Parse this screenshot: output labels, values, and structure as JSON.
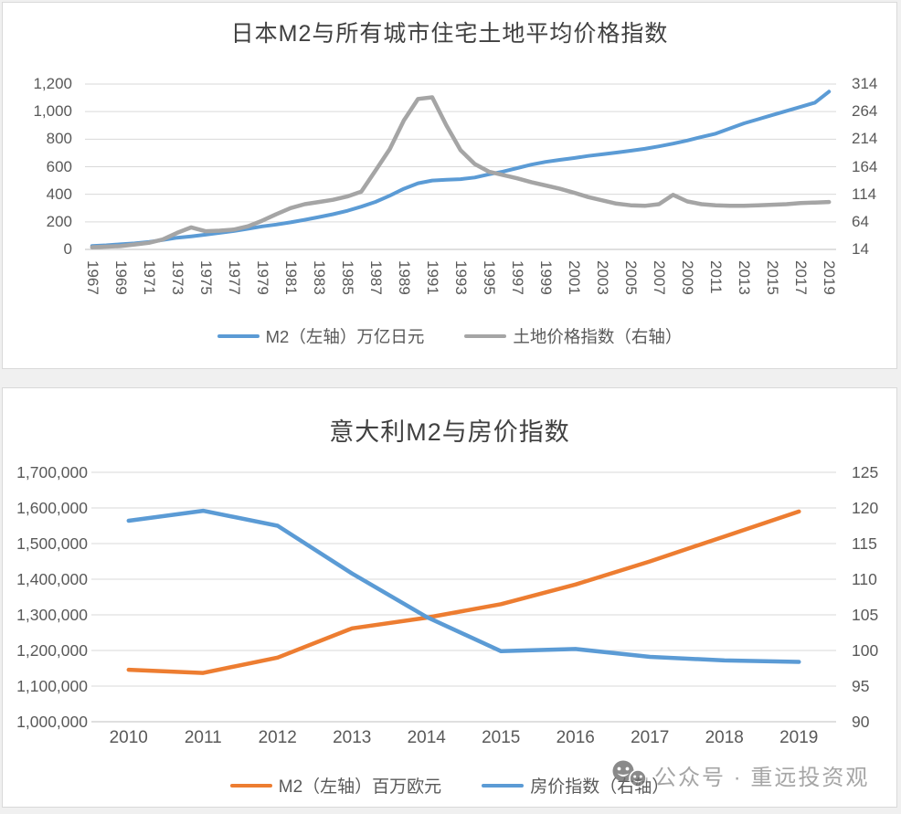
{
  "page": {
    "background": "#f0f0f0",
    "panel_color": "#ffffff",
    "grid_color": "#d9d9d9",
    "axis_color": "#bfbfbf",
    "text_color": "#595959",
    "title_color": "#404040",
    "watermark": {
      "icon": "wechat-chat-bubbles-icon",
      "text": "公众号 · 重远投资观",
      "color": "#8f8f8f"
    }
  },
  "chart_data": [
    {
      "type": "line",
      "title": "日本M2与所有城市住宅土地平均价格指数",
      "grid": true,
      "legend_position": "bottom",
      "x": [
        1967,
        1968,
        1969,
        1970,
        1971,
        1972,
        1973,
        1974,
        1975,
        1976,
        1977,
        1978,
        1979,
        1980,
        1981,
        1982,
        1983,
        1984,
        1985,
        1986,
        1987,
        1988,
        1989,
        1990,
        1991,
        1992,
        1993,
        1994,
        1995,
        1996,
        1997,
        1998,
        1999,
        2000,
        2001,
        2002,
        2003,
        2004,
        2005,
        2006,
        2007,
        2008,
        2009,
        2010,
        2011,
        2012,
        2013,
        2014,
        2015,
        2016,
        2017,
        2018,
        2019
      ],
      "x_label_every": 2,
      "left_axis": {
        "min": 0,
        "max": 1200,
        "tick_labels": [
          "0",
          "200",
          "400",
          "600",
          "800",
          "1,000",
          "1,200"
        ]
      },
      "right_axis": {
        "min": 14,
        "max": 314,
        "tick_labels": [
          "14",
          "64",
          "114",
          "164",
          "214",
          "264",
          "314"
        ]
      },
      "series": [
        {
          "id": "japan-m2-line",
          "name": "M2（左轴）万亿日元",
          "axis": "left",
          "color": "#5B9BD5",
          "stroke_width": 4,
          "values": [
            25,
            30,
            37,
            44,
            54,
            68,
            85,
            95,
            107,
            120,
            133,
            150,
            167,
            180,
            196,
            215,
            235,
            255,
            280,
            310,
            345,
            390,
            440,
            480,
            500,
            505,
            510,
            522,
            545,
            565,
            590,
            615,
            635,
            650,
            663,
            678,
            690,
            703,
            716,
            730,
            748,
            768,
            790,
            816,
            840,
            878,
            915,
            945,
            975,
            1005,
            1035,
            1065,
            1145
          ]
        },
        {
          "id": "japan-land-price-line",
          "name": "土地价格指数（右轴）",
          "axis": "right",
          "color": "#A5A5A5",
          "stroke_width": 4.5,
          "values": [
            18,
            19,
            20,
            23,
            26,
            32,
            44,
            54,
            47,
            48,
            50,
            56,
            66,
            78,
            89,
            96,
            100,
            104,
            110,
            119,
            157,
            196,
            248,
            287,
            290,
            239,
            194,
            169,
            155,
            149,
            143,
            136,
            130,
            124,
            117,
            109,
            103,
            97,
            94,
            93,
            96,
            113,
            101,
            96,
            94,
            93,
            93,
            94,
            95,
            96,
            98,
            99,
            100
          ]
        }
      ]
    },
    {
      "type": "line",
      "title": "意大利M2与房价指数",
      "grid": true,
      "legend_position": "bottom",
      "x": [
        2010,
        2011,
        2012,
        2013,
        2014,
        2015,
        2016,
        2017,
        2018,
        2019
      ],
      "x_label_every": 1,
      "left_axis": {
        "min": 1000000,
        "max": 1700000,
        "tick_labels": [
          "1,000,000",
          "1,100,000",
          "1,200,000",
          "1,300,000",
          "1,400,000",
          "1,500,000",
          "1,600,000",
          "1,700,000"
        ]
      },
      "right_axis": {
        "min": 90,
        "max": 125,
        "tick_labels": [
          "90",
          "95",
          "100",
          "105",
          "110",
          "115",
          "120",
          "125"
        ]
      },
      "series": [
        {
          "id": "italy-m2-line",
          "name": "M2（左轴）百万欧元",
          "axis": "left",
          "color": "#ED7D31",
          "stroke_width": 4.5,
          "values": [
            1146000,
            1137000,
            1180000,
            1262000,
            1292000,
            1330000,
            1385000,
            1450000,
            1520000,
            1590000
          ]
        },
        {
          "id": "italy-house-price-line",
          "name": "房价指数（右轴）",
          "axis": "right",
          "color": "#5B9BD5",
          "stroke_width": 4.5,
          "values": [
            118.2,
            119.6,
            117.5,
            110.8,
            104.7,
            99.9,
            100.2,
            99.1,
            98.6,
            98.4
          ]
        }
      ]
    }
  ]
}
